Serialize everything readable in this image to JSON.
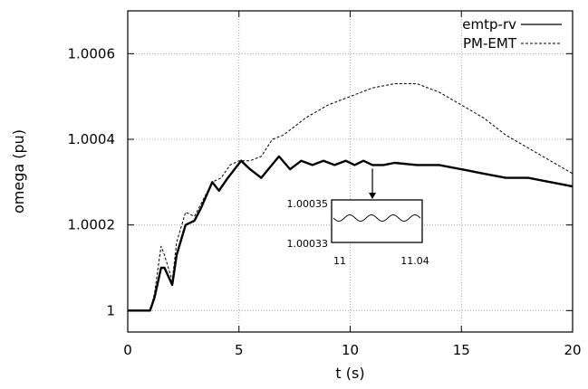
{
  "chart_data": {
    "type": "line",
    "xlabel": "t (s)",
    "ylabel": "omega (pu)",
    "xlim": [
      0,
      20
    ],
    "ylim": [
      0.99995,
      1.0007
    ],
    "x_ticks": [
      "0",
      "5",
      "10",
      "15",
      "20"
    ],
    "x_tick_values": [
      0,
      5,
      10,
      15,
      20
    ],
    "y_ticks": [
      "1",
      "1.0002",
      "1.0004",
      "1.0006"
    ],
    "y_tick_values": [
      1.0,
      1.0002,
      1.0004,
      1.0006
    ],
    "grid": true,
    "legend": "top-right",
    "series": [
      {
        "name": "emtp-rv",
        "style": "solid",
        "x": [
          0,
          1,
          1.2,
          1.5,
          1.65,
          2,
          2.2,
          2.6,
          3,
          3.3,
          3.8,
          4.1,
          4.5,
          5.1,
          5.5,
          6,
          6.8,
          7.3,
          7.8,
          8.3,
          8.8,
          9.3,
          9.8,
          10.2,
          10.6,
          11,
          11.5,
          12,
          13,
          14,
          15,
          16,
          17,
          18,
          19,
          20
        ],
        "y": [
          1.0,
          1.0,
          1.00003,
          1.0001,
          1.0001,
          1.00006,
          1.00013,
          1.0002,
          1.00021,
          1.00024,
          1.0003,
          1.00028,
          1.00031,
          1.00035,
          1.00033,
          1.00031,
          1.00036,
          1.00033,
          1.00035,
          1.00034,
          1.00035,
          1.00034,
          1.00035,
          1.00034,
          1.00035,
          1.00034,
          1.00034,
          1.000345,
          1.00034,
          1.00034,
          1.00033,
          1.00032,
          1.00031,
          1.00031,
          1.0003,
          1.00029
        ]
      },
      {
        "name": "PM-EMT",
        "style": "dashed",
        "x": [
          0,
          1,
          1.2,
          1.5,
          1.65,
          2,
          2.2,
          2.6,
          3,
          3.3,
          3.8,
          4.2,
          4.6,
          5,
          5.5,
          6,
          6.5,
          7,
          8,
          9,
          10,
          11,
          12,
          12.5,
          13,
          14,
          15,
          16,
          17,
          18,
          19,
          20
        ],
        "y": [
          1.0,
          1.0,
          1.00004,
          1.00015,
          1.00013,
          1.00007,
          1.00016,
          1.00023,
          1.00022,
          1.00025,
          1.0003,
          1.00031,
          1.00034,
          1.00035,
          1.00035,
          1.00036,
          1.0004,
          1.00041,
          1.00045,
          1.00048,
          1.0005,
          1.00052,
          1.00053,
          1.00053,
          1.00053,
          1.00051,
          1.00048,
          1.00045,
          1.00041,
          1.00038,
          1.00035,
          1.00032
        ]
      }
    ],
    "inset": {
      "x_ticks": [
        "11",
        "11.04"
      ],
      "y_ticks": [
        "1.00035",
        "1.00033"
      ],
      "xlim": [
        11,
        11.04
      ],
      "ylim": [
        1.00033,
        1.00035
      ],
      "waves": 4,
      "arrow_from_x": 11,
      "arrow_from_y": 1.00034
    }
  }
}
